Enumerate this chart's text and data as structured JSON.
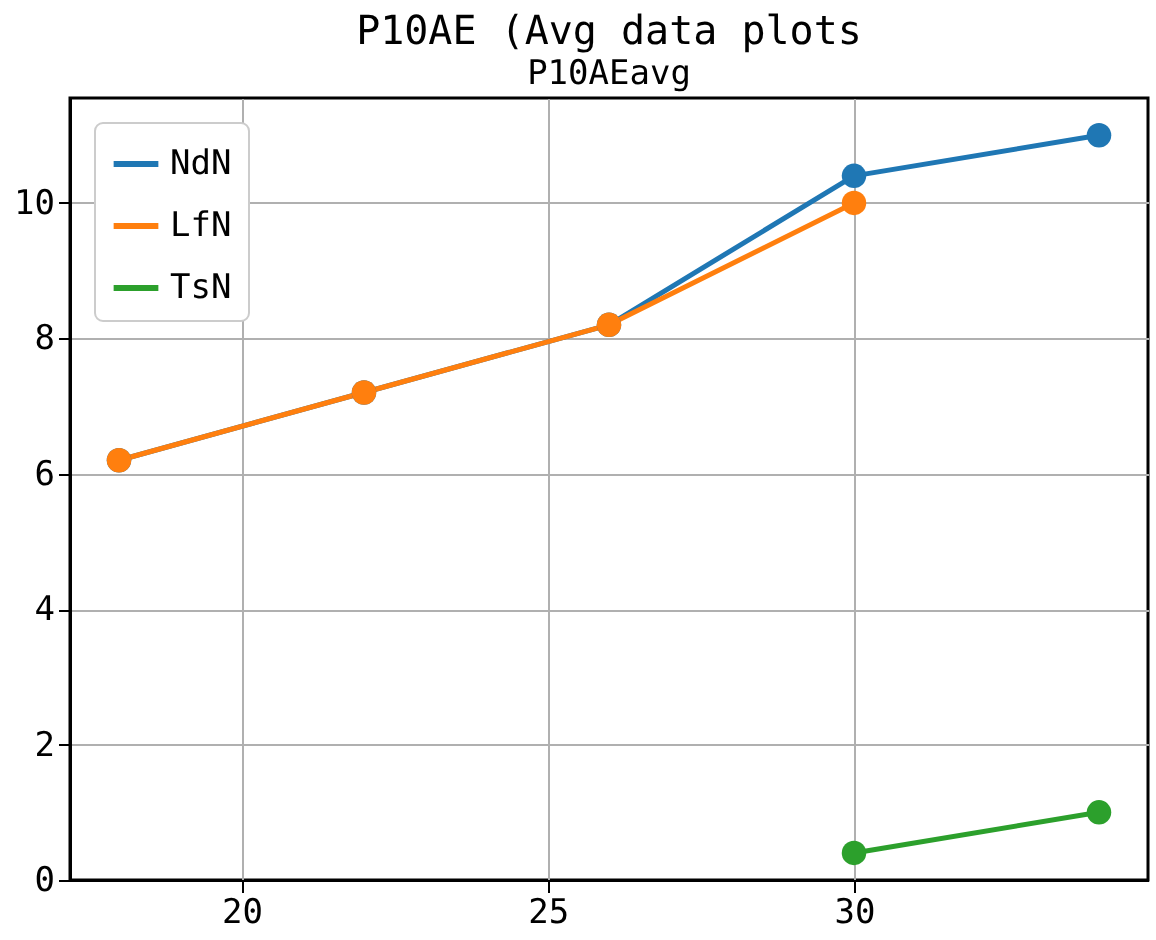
{
  "chart_data": {
    "type": "line",
    "title": "P10AE (Avg data plots",
    "subtitle": "P10AEavg",
    "x": [
      18,
      22,
      26,
      30,
      34
    ],
    "series": [
      {
        "name": "NdN",
        "color": "#1f77b4",
        "values": [
          6.2,
          7.2,
          8.2,
          10.4,
          11
        ]
      },
      {
        "name": "LfN",
        "color": "#ff7f0e",
        "values": [
          6.2,
          7.2,
          8.2,
          10,
          null
        ]
      },
      {
        "name": "TsN",
        "color": "#2ca02c",
        "values": [
          null,
          null,
          null,
          0.4,
          1
        ]
      }
    ],
    "xlim": [
      17.2,
      34.8
    ],
    "xticks": [
      20,
      25,
      30
    ],
    "ylim": [
      0,
      11.55
    ],
    "yticks": [
      0,
      2,
      4,
      6,
      8,
      10
    ],
    "grid": true,
    "legend": "top left",
    "marker": "circle",
    "line_style": "solid"
  }
}
